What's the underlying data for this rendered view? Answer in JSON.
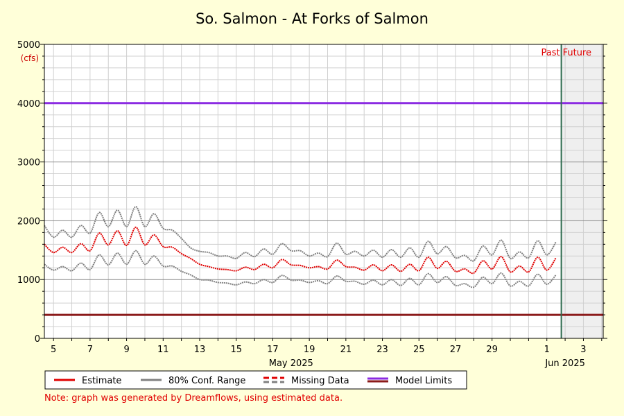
{
  "chart_data": {
    "type": "line",
    "title": "So. Salmon - At Forks of Salmon",
    "y_unit": "(cfs)",
    "ylim": [
      0,
      5000
    ],
    "y_ticks": [
      0,
      1000,
      2000,
      3000,
      4000,
      5000
    ],
    "xlim": [
      "2025-05-04T12:00",
      "2025-06-04T02:00"
    ],
    "x_ticks": [
      {
        "date": "2025-05-05",
        "label": "5"
      },
      {
        "date": "2025-05-07",
        "label": "7"
      },
      {
        "date": "2025-05-09",
        "label": "9"
      },
      {
        "date": "2025-05-11",
        "label": "11"
      },
      {
        "date": "2025-05-13",
        "label": "13"
      },
      {
        "date": "2025-05-15",
        "label": "15"
      },
      {
        "date": "2025-05-17",
        "label": "17"
      },
      {
        "date": "2025-05-19",
        "label": "19"
      },
      {
        "date": "2025-05-21",
        "label": "21"
      },
      {
        "date": "2025-05-23",
        "label": "23"
      },
      {
        "date": "2025-05-25",
        "label": "25"
      },
      {
        "date": "2025-05-27",
        "label": "27"
      },
      {
        "date": "2025-05-29",
        "label": "29"
      },
      {
        "date": "2025-06-01",
        "label": "1"
      },
      {
        "date": "2025-06-03",
        "label": "3"
      }
    ],
    "month_labels": [
      {
        "date": "2025-05-18",
        "label": "May 2025"
      },
      {
        "date": "2025-06-02",
        "label": "Jun 2025"
      }
    ],
    "now_marker": "2025-06-01T19:00",
    "past_label": "Past",
    "future_label": "Future",
    "model_limits": {
      "upper": 4000,
      "lower": 400
    },
    "grid": true,
    "legend_position": "bottom",
    "series": [
      {
        "name": "Estimate",
        "color": "#E00000",
        "x": [
          "2025-05-04T12:00",
          "2025-05-05T00:00",
          "2025-05-05T12:00",
          "2025-05-06T00:00",
          "2025-05-06T12:00",
          "2025-05-07T00:00",
          "2025-05-07T12:00",
          "2025-05-08T00:00",
          "2025-05-08T12:00",
          "2025-05-09T00:00",
          "2025-05-09T12:00",
          "2025-05-10T00:00",
          "2025-05-10T12:00",
          "2025-05-11T00:00",
          "2025-05-11T12:00",
          "2025-05-12T00:00",
          "2025-05-12T12:00",
          "2025-05-13T00:00",
          "2025-05-13T12:00",
          "2025-05-14T00:00",
          "2025-05-14T12:00",
          "2025-05-15T00:00",
          "2025-05-15T12:00",
          "2025-05-16T00:00",
          "2025-05-16T12:00",
          "2025-05-17T00:00",
          "2025-05-17T12:00",
          "2025-05-18T00:00",
          "2025-05-18T12:00",
          "2025-05-19T00:00",
          "2025-05-19T12:00",
          "2025-05-20T00:00",
          "2025-05-20T12:00",
          "2025-05-21T00:00",
          "2025-05-21T12:00",
          "2025-05-22T00:00",
          "2025-05-22T12:00",
          "2025-05-23T00:00",
          "2025-05-23T12:00",
          "2025-05-24T00:00",
          "2025-05-24T12:00",
          "2025-05-25T00:00",
          "2025-05-25T12:00",
          "2025-05-26T00:00",
          "2025-05-26T12:00",
          "2025-05-27T00:00",
          "2025-05-27T12:00",
          "2025-05-28T00:00",
          "2025-05-28T12:00",
          "2025-05-29T00:00",
          "2025-05-29T12:00",
          "2025-05-30T00:00",
          "2025-05-30T12:00",
          "2025-05-31T00:00",
          "2025-05-31T12:00",
          "2025-06-01T00:00",
          "2025-06-01T12:00"
        ],
        "values": [
          1600,
          1460,
          1550,
          1460,
          1610,
          1490,
          1790,
          1590,
          1830,
          1580,
          1890,
          1590,
          1760,
          1560,
          1550,
          1440,
          1360,
          1260,
          1220,
          1180,
          1170,
          1150,
          1210,
          1170,
          1260,
          1200,
          1340,
          1250,
          1240,
          1200,
          1220,
          1180,
          1330,
          1220,
          1210,
          1160,
          1250,
          1150,
          1250,
          1140,
          1260,
          1150,
          1380,
          1190,
          1310,
          1140,
          1180,
          1110,
          1320,
          1180,
          1390,
          1130,
          1230,
          1130,
          1380,
          1160,
          1370
        ]
      },
      {
        "name": "80% Conf. Range",
        "color": "#808080",
        "x": [
          "2025-05-04T12:00",
          "2025-05-05T00:00",
          "2025-05-05T12:00",
          "2025-05-06T00:00",
          "2025-05-06T12:00",
          "2025-05-07T00:00",
          "2025-05-07T12:00",
          "2025-05-08T00:00",
          "2025-05-08T12:00",
          "2025-05-09T00:00",
          "2025-05-09T12:00",
          "2025-05-10T00:00",
          "2025-05-10T12:00",
          "2025-05-11T00:00",
          "2025-05-11T12:00",
          "2025-05-12T00:00",
          "2025-05-12T12:00",
          "2025-05-13T00:00",
          "2025-05-13T12:00",
          "2025-05-14T00:00",
          "2025-05-14T12:00",
          "2025-05-15T00:00",
          "2025-05-15T12:00",
          "2025-05-16T00:00",
          "2025-05-16T12:00",
          "2025-05-17T00:00",
          "2025-05-17T12:00",
          "2025-05-18T00:00",
          "2025-05-18T12:00",
          "2025-05-19T00:00",
          "2025-05-19T12:00",
          "2025-05-20T00:00",
          "2025-05-20T12:00",
          "2025-05-21T00:00",
          "2025-05-21T12:00",
          "2025-05-22T00:00",
          "2025-05-22T12:00",
          "2025-05-23T00:00",
          "2025-05-23T12:00",
          "2025-05-24T00:00",
          "2025-05-24T12:00",
          "2025-05-25T00:00",
          "2025-05-25T12:00",
          "2025-05-26T00:00",
          "2025-05-26T12:00",
          "2025-05-27T00:00",
          "2025-05-27T12:00",
          "2025-05-28T00:00",
          "2025-05-28T12:00",
          "2025-05-29T00:00",
          "2025-05-29T12:00",
          "2025-05-30T00:00",
          "2025-05-30T12:00",
          "2025-05-31T00:00",
          "2025-05-31T12:00",
          "2025-06-01T00:00",
          "2025-06-01T12:00"
        ],
        "upper": [
          1920,
          1720,
          1840,
          1720,
          1920,
          1790,
          2140,
          1900,
          2180,
          1900,
          2240,
          1900,
          2120,
          1870,
          1840,
          1700,
          1540,
          1480,
          1460,
          1400,
          1400,
          1360,
          1460,
          1390,
          1520,
          1430,
          1610,
          1490,
          1490,
          1400,
          1450,
          1390,
          1620,
          1430,
          1480,
          1400,
          1500,
          1380,
          1510,
          1380,
          1540,
          1380,
          1650,
          1440,
          1560,
          1370,
          1410,
          1320,
          1570,
          1420,
          1670,
          1360,
          1470,
          1370,
          1660,
          1420,
          1640
        ],
        "lower": [
          1260,
          1160,
          1220,
          1150,
          1280,
          1170,
          1420,
          1250,
          1450,
          1260,
          1490,
          1260,
          1400,
          1230,
          1230,
          1140,
          1080,
          1000,
          990,
          950,
          940,
          910,
          960,
          930,
          1000,
          950,
          1070,
          990,
          990,
          950,
          980,
          930,
          1060,
          970,
          970,
          920,
          990,
          910,
          1000,
          900,
          1020,
          910,
          1100,
          950,
          1050,
          900,
          930,
          870,
          1040,
          930,
          1110,
          890,
          970,
          890,
          1090,
          920,
          1080
        ]
      },
      {
        "name": "Missing Data",
        "color": "#E00000",
        "dashed": true,
        "x": [],
        "values": []
      },
      {
        "name": "Model Limits",
        "color": "#8B2BE2",
        "x": [],
        "values": []
      }
    ]
  },
  "legend": {
    "items": [
      {
        "label": "Estimate",
        "color": "#E00000",
        "style": "solid"
      },
      {
        "label": "80% Conf. Range",
        "color": "#808080",
        "style": "solid"
      },
      {
        "label": "Missing Data",
        "color": "#E00000",
        "style": "dashed"
      },
      {
        "label": "Model Limits",
        "color": "#8B2BE2",
        "style": "double"
      }
    ]
  },
  "colors": {
    "background": "#FFFFD9",
    "plot_background": "#FFFFFF",
    "future_shade": "#EFEFEF",
    "upper_limit": "#8B2BE2",
    "lower_limit": "#8B1A1A",
    "now_line": "#2E6B4F",
    "past_future_text": "#E00000"
  },
  "note": "Note: graph was generated by Dreamflows, using estimated data."
}
